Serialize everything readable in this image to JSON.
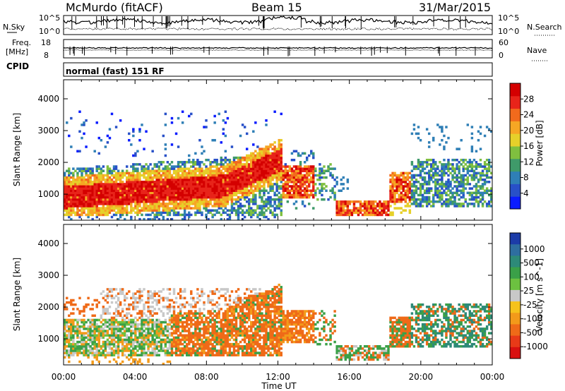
{
  "header": {
    "station": "McMurdo (fitACF)",
    "beam": "Beam 15",
    "date": "31/Mar/2015"
  },
  "status_panel": {
    "nsky_label": "N.Sky",
    "nsearch_label": "N.Search",
    "nsky_ticks": [
      "10^5",
      "10^0"
    ],
    "nsearch_ticks": [
      "10^5",
      "10^0"
    ],
    "freq_label": [
      "Freq.",
      "[MHz]"
    ],
    "freq_ticks": [
      "18",
      "8"
    ],
    "nave_label": "Nave",
    "nave_ticks": [
      "60",
      "0"
    ],
    "cpid_label": "CPID",
    "cpid_value": "normal (fast) 151 RF"
  },
  "chart_data": [
    {
      "type": "heatmap",
      "title": "Power",
      "xlabel": "Time UT",
      "ylabel": "Slant Range [km]",
      "xlim": [
        "00:00",
        "24:00"
      ],
      "ylim": [
        180,
        4600
      ],
      "x_ticks": [
        "00:00",
        "04:00",
        "08:00",
        "12:00",
        "16:00",
        "20:00",
        "00:00"
      ],
      "y_ticks": [
        "1000",
        "2000",
        "3000",
        "4000"
      ],
      "colorbar": {
        "label": "Power [dB]",
        "tick_labels": [
          "4",
          "8",
          "12",
          "16",
          "20",
          "24",
          "28"
        ],
        "range": [
          0,
          30
        ],
        "colors": [
          "#0a1cff",
          "#2850c8",
          "#2f7fb6",
          "#3f9a6a",
          "#7fbf3f",
          "#e6d02a",
          "#f6a624",
          "#f26a1c",
          "#e8241a",
          "#d40000"
        ]
      },
      "regions": [
        {
          "t_start": "00:00",
          "t_end": "12:00",
          "range_km": [
            400,
            1900
          ],
          "dominant": "red (>24 dB) core near 600–1200 km"
        },
        {
          "t_start": "11:00",
          "t_end": "14:00",
          "range_km": [
            900,
            2200
          ],
          "dominant": "orange/red"
        },
        {
          "t_start": "15:30",
          "t_end": "19:00",
          "range_km": [
            300,
            900
          ],
          "dominant": "red/orange"
        },
        {
          "t_start": "18:00",
          "t_end": "19:30",
          "range_km": [
            700,
            1700
          ],
          "dominant": "red/orange"
        },
        {
          "t_start": "19:30",
          "t_end": "24:00",
          "range_km": [
            600,
            2100
          ],
          "dominant": "blue/green"
        }
      ]
    },
    {
      "type": "heatmap",
      "title": "Velocity",
      "xlabel": "Time UT",
      "ylabel": "Slant Range [km]",
      "xlim": [
        "00:00",
        "24:00"
      ],
      "ylim": [
        180,
        4600
      ],
      "x_ticks": [
        "00:00",
        "04:00",
        "08:00",
        "12:00",
        "16:00",
        "20:00",
        "00:00"
      ],
      "y_ticks": [
        "1000",
        "2000",
        "3000",
        "4000"
      ],
      "colorbar": {
        "label": "Velocity [m s^-1]",
        "tick_labels": [
          "1000",
          "500",
          "100",
          "25",
          "-25",
          "-100",
          "-500",
          "-1000"
        ],
        "colors": [
          "#1c3ca8",
          "#2e6ea0",
          "#2d8a78",
          "#3aa048",
          "#6cc140",
          "#c8c8c8",
          "#f6c21c",
          "#f39a1a",
          "#ef6a18",
          "#e83a18",
          "#d81010"
        ]
      },
      "regions": [
        {
          "t_start": "00:00",
          "t_end": "06:00",
          "range_km": [
            500,
            1600
          ],
          "dominant": "green/orange/gray mix"
        },
        {
          "t_start": "02:00",
          "t_end": "10:00",
          "range_km": [
            1800,
            2600
          ],
          "dominant": "gray/orange"
        },
        {
          "t_start": "05:00",
          "t_end": "13:00",
          "range_km": [
            500,
            2200
          ],
          "dominant": "orange (-100 to -500)"
        },
        {
          "t_start": "15:30",
          "t_end": "19:00",
          "range_km": [
            300,
            800
          ],
          "dominant": "green/orange"
        },
        {
          "t_start": "18:00",
          "t_end": "19:30",
          "range_km": [
            700,
            1700
          ],
          "dominant": "orange"
        },
        {
          "t_start": "19:30",
          "t_end": "24:00",
          "range_km": [
            800,
            2000
          ],
          "dominant": "green/teal/orange"
        }
      ]
    }
  ]
}
